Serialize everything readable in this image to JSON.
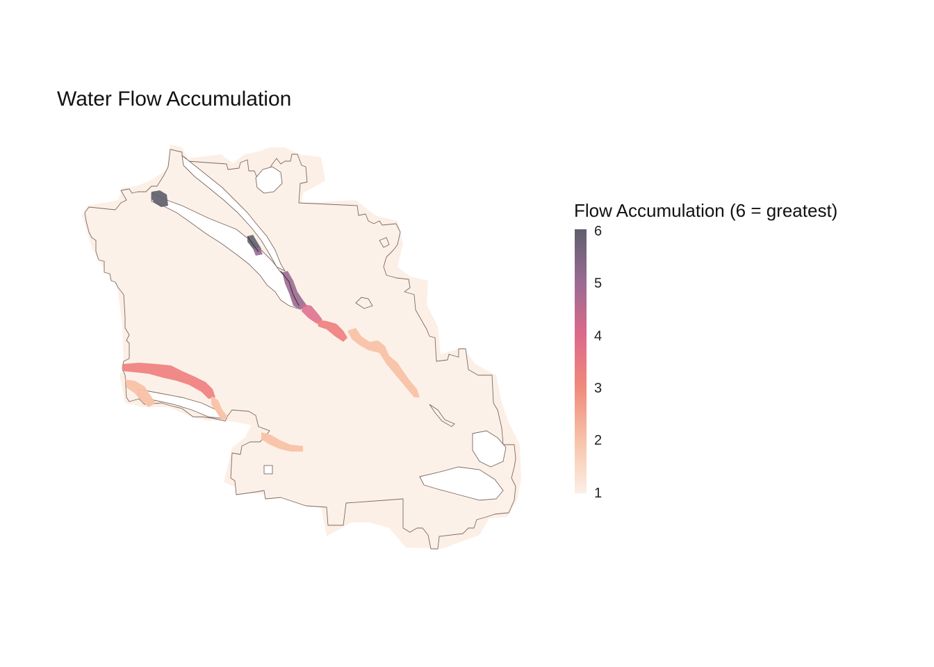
{
  "title": "Water Flow Accumulation",
  "legend": {
    "title": "Flow Accumulation (6 = greatest)",
    "min": 1,
    "max": 6,
    "ticks": [
      "6",
      "5",
      "4",
      "3",
      "2",
      "1"
    ],
    "gradient": [
      "#fcefe6",
      "#f8c2a8",
      "#f08a7c",
      "#dd6a8a",
      "#9a6a92",
      "#5f5f6e"
    ]
  },
  "colors": {
    "base_fill": "#fcf1e8",
    "halo_fill": "#fcefe6",
    "boundary_stroke": "#7a6862",
    "high_flow": "#5f5f6e"
  }
}
